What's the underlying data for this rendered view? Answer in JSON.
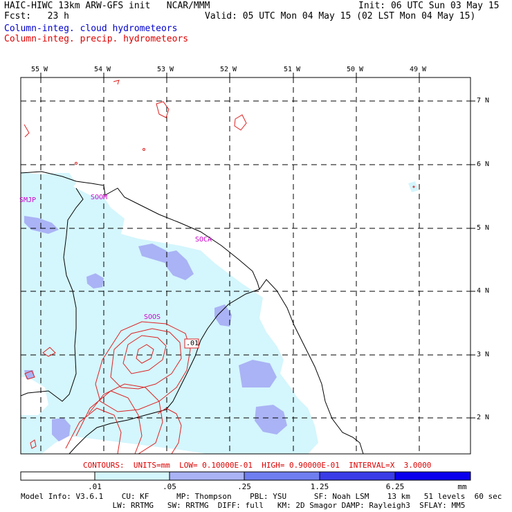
{
  "header": {
    "line1_left": "HAIC-HIWC 13km ARW-GFS init   NCAR/MMM",
    "line1_right": "Init: 06 UTC Sun 03 May 15",
    "line2_left": "Fcst:   23 h",
    "line2_right": "Valid: 05 UTC Mon 04 May 15 (02 LST Mon 04 May 15)",
    "field1": "Column-integ. cloud hydrometeors",
    "field2": "Column-integ. precip. hydrometeors"
  },
  "map": {
    "lon_labels": [
      "55 W",
      "54 W",
      "53 W",
      "52 W",
      "51 W",
      "50 W",
      "49 W"
    ],
    "lat_labels": [
      "7 N",
      "6 N",
      "5 N",
      "4 N",
      "3 N",
      "2 N"
    ],
    "stations": [
      "SMJP",
      "SOOM",
      "SOCA",
      "SOOS"
    ],
    "contour_label": ".01",
    "colors": {
      "light": "#d4f6fd",
      "mid": "#aab3f5",
      "coast": "#000000",
      "contour": "#dd2222",
      "grid": "#000000"
    }
  },
  "footer": {
    "contours": "CONTOURS:  UNITS=mm  LOW= 0.10000E-01  HIGH= 0.90000E-01  INTERVAL=X  3.0000",
    "colorbar_labels": [
      ".01",
      ".05",
      ".25",
      "1.25",
      "6.25"
    ],
    "colorbar_units": "mm",
    "colorbar_colors": [
      "#ffffff",
      "#d4f6fd",
      "#aab3f5",
      "#6f7ef0",
      "#3a3ce8",
      "#0a00ee"
    ],
    "model_info1": "Model Info: V3.6.1    CU: KF      MP: Thompson    PBL: YSU      SF: Noah LSM    13 km   51 levels  60 sec",
    "model_info2": "                    LW: RRTMG   SW: RRTMG  DIFF: full   KM: 2D Smagor DAMP: Rayleigh3  SFLAY: MM5"
  }
}
